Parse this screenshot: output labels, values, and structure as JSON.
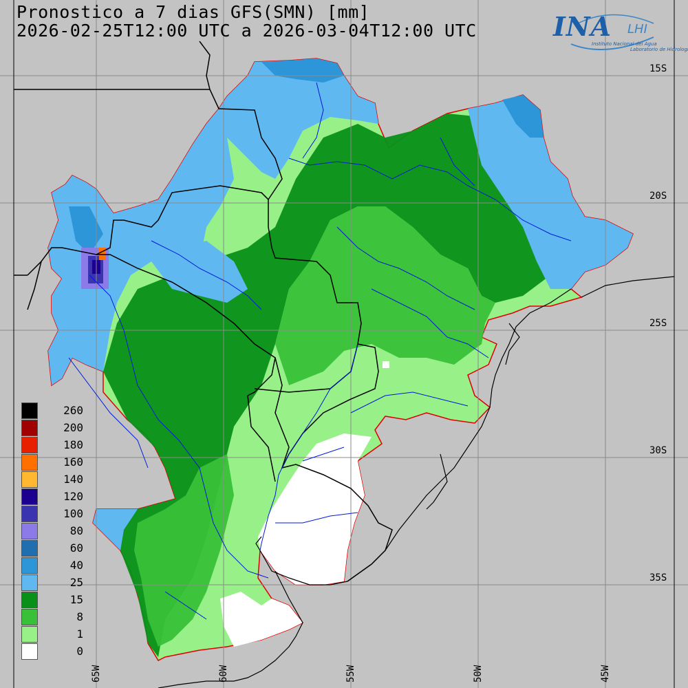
{
  "title": {
    "line1": "Pronostico a 7 dias GFS(SMN) [mm]",
    "line2": "2026-02-25T12:00 UTC a 2026-03-04T12:00 UTC"
  },
  "logo": {
    "ina": "INA",
    "lhi": "LHI",
    "sub1": "Instituto Nacional del Agua",
    "sub2": "Laboratorio de Hidrología"
  },
  "lat_labels": [
    "15S",
    "20S",
    "25S",
    "30S",
    "35S"
  ],
  "lon_labels": [
    "65W",
    "60W",
    "55W",
    "50W",
    "45W"
  ],
  "legend": [
    {
      "value": "260",
      "color": "#000000"
    },
    {
      "value": "200",
      "color": "#a00000"
    },
    {
      "value": "180",
      "color": "#e82000"
    },
    {
      "value": "160",
      "color": "#ff7000"
    },
    {
      "value": "140",
      "color": "#ffb830"
    },
    {
      "value": "120",
      "color": "#1c0090"
    },
    {
      "value": "100",
      "color": "#3a34b0"
    },
    {
      "value": "80",
      "color": "#8c7ae8"
    },
    {
      "value": "60",
      "color": "#1e6eb0"
    },
    {
      "value": "40",
      "color": "#2c96d8"
    },
    {
      "value": "25",
      "color": "#60b8f0"
    },
    {
      "value": "15",
      "color": "#089018"
    },
    {
      "value": "8",
      "color": "#38c038"
    },
    {
      "value": "1",
      "color": "#98f088"
    },
    {
      "value": "0",
      "color": "#ffffff"
    }
  ]
}
